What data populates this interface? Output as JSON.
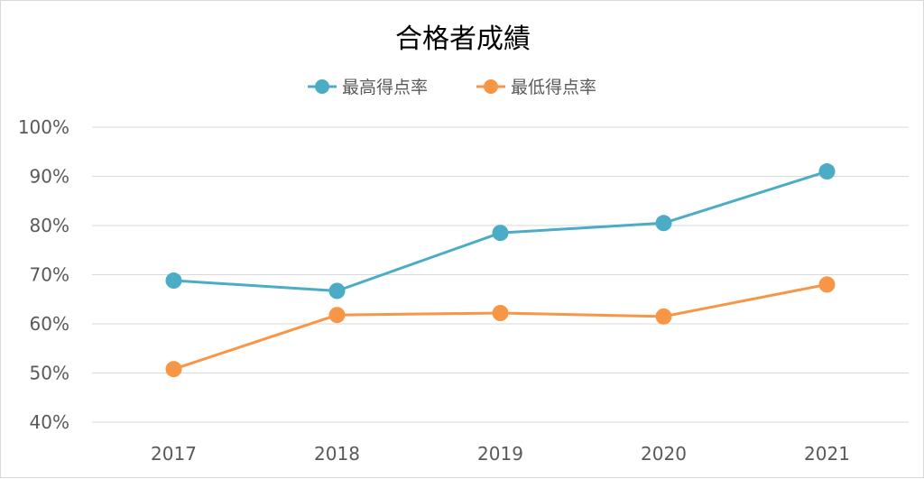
{
  "chart_data": {
    "type": "line",
    "title": "合格者成績",
    "xlabel": "",
    "ylabel": "",
    "categories": [
      "2017",
      "2018",
      "2019",
      "2020",
      "2021"
    ],
    "y_ticks": [
      "40%",
      "50%",
      "60%",
      "70%",
      "80%",
      "90%",
      "100%"
    ],
    "ylim": [
      40,
      100
    ],
    "grid": true,
    "legend_position": "top",
    "series": [
      {
        "name": "最高得点率",
        "color": "#4bacc6",
        "values": [
          68.8,
          66.7,
          78.5,
          80.5,
          91.0
        ]
      },
      {
        "name": "最低得点率",
        "color": "#f79646",
        "values": [
          50.8,
          61.8,
          62.2,
          61.5,
          68.0
        ]
      }
    ]
  }
}
